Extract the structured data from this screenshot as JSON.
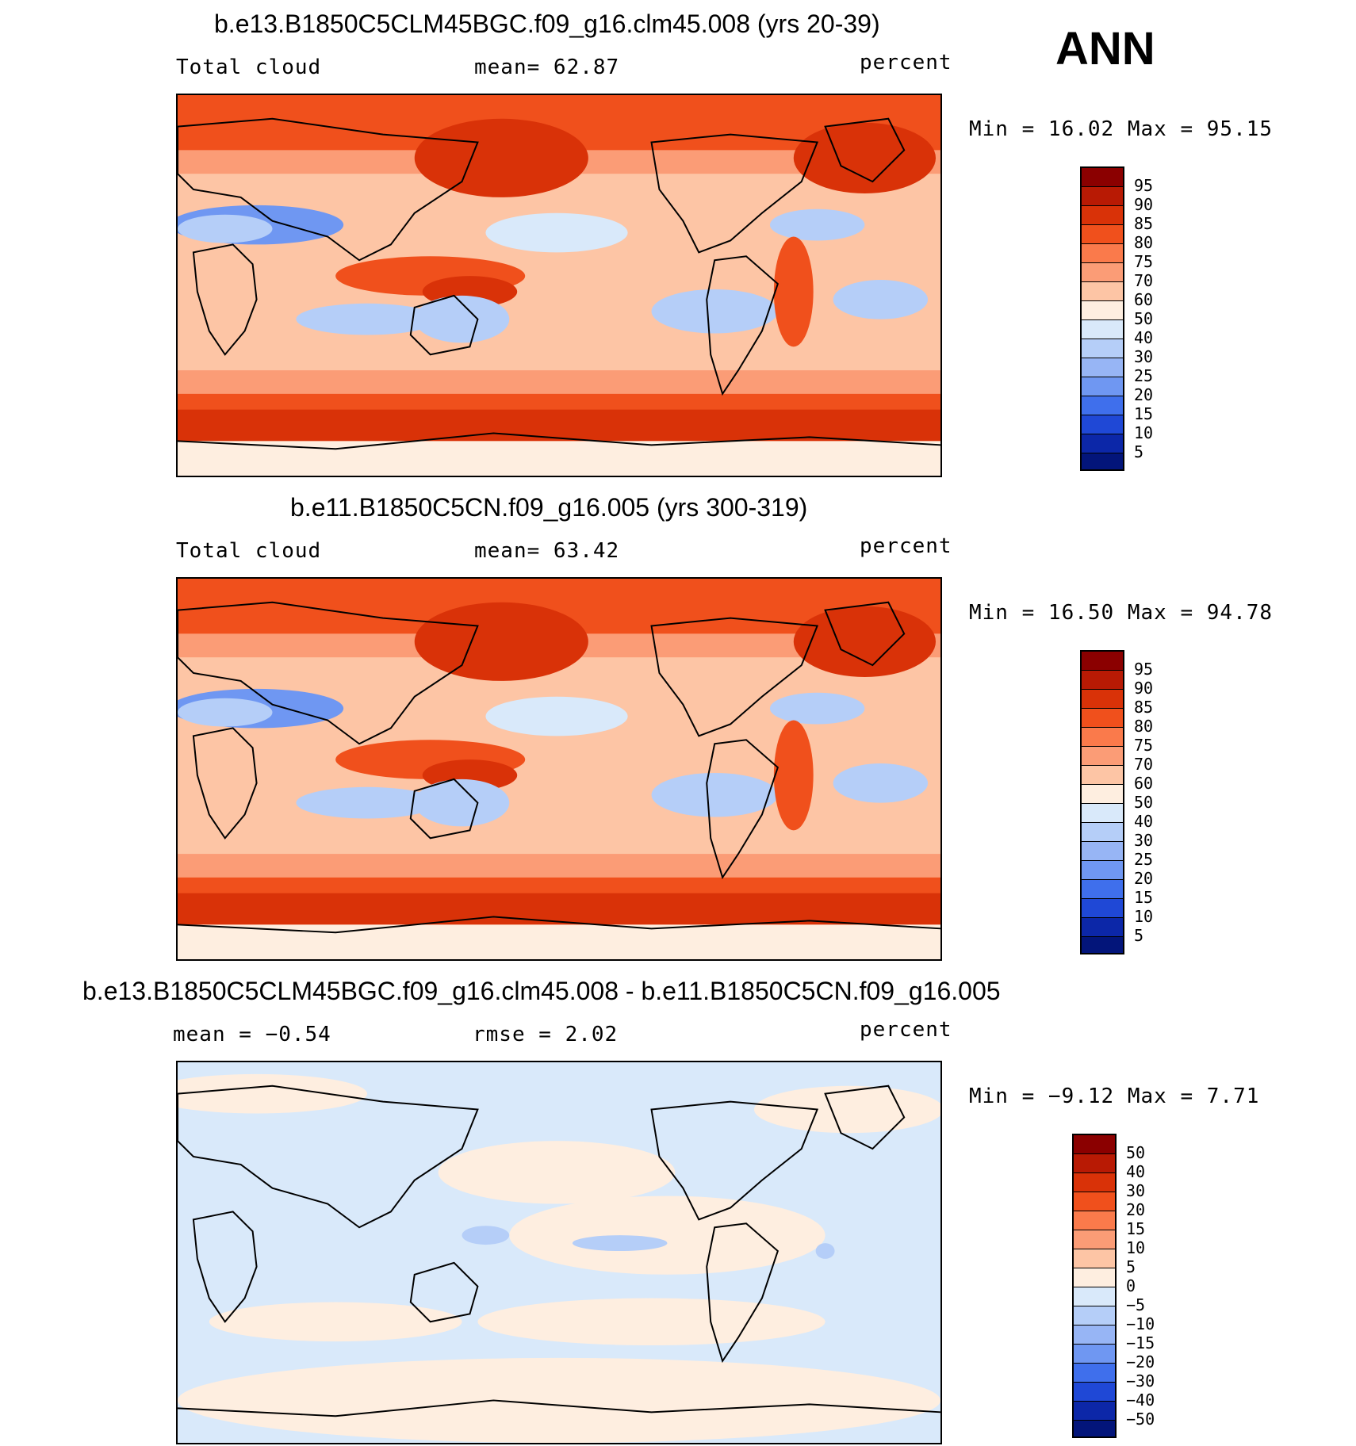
{
  "season_label": "ANN",
  "panels": [
    {
      "title": "b.e13.B1850C5CLM45BGC.f09_g16.clm45.008 (yrs 20-39)",
      "left_label": "Total cloud",
      "center_label": "mean=   62.87",
      "units": "percent",
      "minmax": "Min =   16.02 Max =   95.15",
      "colorbar": {
        "labels": [
          "95",
          "90",
          "85",
          "80",
          "75",
          "70",
          "60",
          "50",
          "40",
          "30",
          "25",
          "20",
          "15",
          "10",
          "5"
        ],
        "colors": [
          "#8b0000",
          "#b81a04",
          "#d93208",
          "#f0501c",
          "#fa7a4b",
          "#fb9c76",
          "#fdc5a5",
          "#feeee0",
          "#d9e9fa",
          "#b5cef8",
          "#97b5f5",
          "#6f97f2",
          "#3f6fec",
          "#1f48d6",
          "#0c27a8",
          "#03157a"
        ]
      },
      "map_fill": {
        "base": "#fdc5a5",
        "shades": [
          "#f0501c",
          "#d93208",
          "#b81a04",
          "#fb9c76",
          "#feeee0",
          "#d9e9fa",
          "#b5cef8",
          "#6f97f2"
        ]
      }
    },
    {
      "title": "b.e11.B1850C5CN.f09_g16.005 (yrs 300-319)",
      "left_label": "Total cloud",
      "center_label": "mean=   63.42",
      "units": "percent",
      "minmax": "Min =   16.50 Max =   94.78",
      "colorbar": {
        "labels": [
          "95",
          "90",
          "85",
          "80",
          "75",
          "70",
          "60",
          "50",
          "40",
          "30",
          "25",
          "20",
          "15",
          "10",
          "5"
        ],
        "colors": [
          "#8b0000",
          "#b81a04",
          "#d93208",
          "#f0501c",
          "#fa7a4b",
          "#fb9c76",
          "#fdc5a5",
          "#feeee0",
          "#d9e9fa",
          "#b5cef8",
          "#97b5f5",
          "#6f97f2",
          "#3f6fec",
          "#1f48d6",
          "#0c27a8",
          "#03157a"
        ]
      },
      "map_fill": {
        "base": "#fdc5a5",
        "shades": [
          "#f0501c",
          "#d93208",
          "#b81a04",
          "#fb9c76",
          "#feeee0",
          "#d9e9fa",
          "#b5cef8",
          "#6f97f2"
        ]
      }
    },
    {
      "title": "b.e13.B1850C5CLM45BGC.f09_g16.clm45.008 - b.e11.B1850C5CN.f09_g16.005",
      "left_label": "mean =   −0.54",
      "center_label": "rmse =    2.02",
      "units": "percent",
      "minmax": "Min =  −9.12 Max =    7.71",
      "colorbar": {
        "labels": [
          "50",
          "40",
          "30",
          "20",
          "15",
          "10",
          "5",
          "0",
          "−5",
          "−10",
          "−15",
          "−20",
          "−30",
          "−40",
          "−50"
        ],
        "colors": [
          "#8b0000",
          "#b81a04",
          "#d93208",
          "#f0501c",
          "#fa7a4b",
          "#fb9c76",
          "#fdc5a5",
          "#feeee0",
          "#d9e9fa",
          "#b5cef8",
          "#97b5f5",
          "#6f97f2",
          "#3f6fec",
          "#1f48d6",
          "#0c27a8",
          "#03157a"
        ]
      },
      "map_fill": {
        "base": "#d9e9fa",
        "shades": [
          "#feeee0",
          "#b5cef8",
          "#feeee0",
          "#d9e9fa"
        ]
      }
    }
  ]
}
